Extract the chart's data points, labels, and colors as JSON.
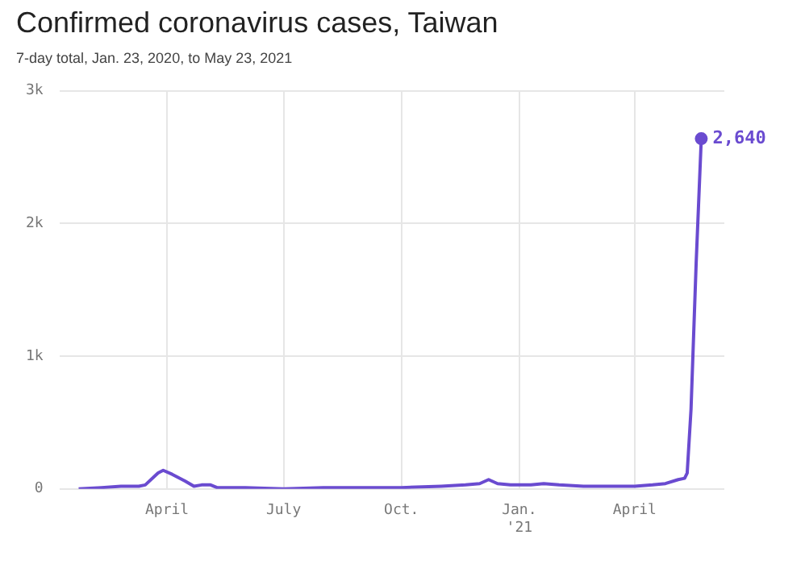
{
  "chart_data": {
    "type": "line",
    "title": "Confirmed coronavirus cases, Taiwan",
    "subtitle": "7-day total, Jan. 23, 2020, to May 23, 2021",
    "x": [
      "2020-01-23",
      "2020-02-10",
      "2020-02-25",
      "2020-03-10",
      "2020-03-15",
      "2020-03-25",
      "2020-03-29",
      "2020-04-05",
      "2020-04-15",
      "2020-04-22",
      "2020-04-28",
      "2020-05-05",
      "2020-05-10",
      "2020-06-01",
      "2020-07-01",
      "2020-08-01",
      "2020-09-01",
      "2020-10-01",
      "2020-11-01",
      "2020-11-20",
      "2020-12-01",
      "2020-12-08",
      "2020-12-15",
      "2020-12-25",
      "2021-01-10",
      "2021-01-20",
      "2021-02-01",
      "2021-02-20",
      "2021-03-01",
      "2021-03-15",
      "2021-04-01",
      "2021-04-15",
      "2021-04-25",
      "2021-05-05",
      "2021-05-10",
      "2021-05-12",
      "2021-05-15",
      "2021-05-19",
      "2021-05-23"
    ],
    "series": [
      {
        "color": "#6a4bd0",
        "values": [
          0,
          10,
          20,
          20,
          30,
          120,
          140,
          110,
          60,
          20,
          30,
          30,
          10,
          10,
          0,
          10,
          10,
          10,
          20,
          30,
          40,
          70,
          40,
          30,
          30,
          40,
          30,
          20,
          20,
          20,
          20,
          30,
          40,
          70,
          80,
          120,
          600,
          1700,
          2640
        ],
        "value_labels": [
          null,
          null,
          null,
          null,
          null,
          null,
          null,
          null,
          null,
          null,
          null,
          null,
          null,
          null,
          null,
          null,
          null,
          null,
          null,
          null,
          null,
          null,
          null,
          null,
          null,
          null,
          null,
          null,
          null,
          null,
          null,
          null,
          null,
          null,
          null,
          null,
          null,
          null,
          "2,640"
        ]
      }
    ],
    "xlim": [
      "2020-01-08",
      "2021-06-10"
    ],
    "xticks": [
      {
        "value": "2020-04-01",
        "label": "April"
      },
      {
        "value": "2020-07-01",
        "label": "July"
      },
      {
        "value": "2020-10-01",
        "label": "Oct."
      },
      {
        "value": "2021-01-01",
        "label": "Jan.\n'21"
      },
      {
        "value": "2021-04-01",
        "label": "April"
      }
    ],
    "ylim": [
      0,
      3000
    ],
    "yticks": [
      0,
      {
        "value": 1000,
        "label": "1k"
      },
      {
        "value": 2000,
        "label": "2k"
      },
      {
        "value": 3000,
        "label": "3k"
      }
    ],
    "grid": true,
    "legend": false
  }
}
